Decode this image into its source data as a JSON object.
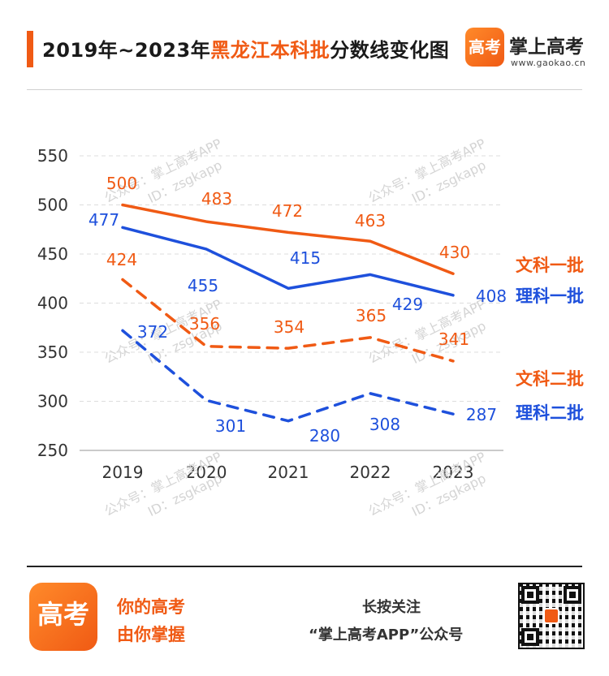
{
  "header": {
    "title_prefix": "2019年~2023年",
    "title_highlight": "黑龙江本科批",
    "title_suffix": "分数线变化图",
    "accent_color": "#f05a14"
  },
  "brand": {
    "logo_text": "高考",
    "name": "掌上高考",
    "url": "www.gaokao.cn"
  },
  "watermark": {
    "line1": "公众号：掌上高考APP",
    "line2": "ID：zsgkapp"
  },
  "chart_data": {
    "type": "line",
    "categories": [
      "2019",
      "2020",
      "2021",
      "2022",
      "2023"
    ],
    "ylim": [
      250,
      550
    ],
    "yticks": [
      550,
      500,
      450,
      400,
      350,
      300,
      250
    ],
    "grid": true,
    "legend_position": "right",
    "series": [
      {
        "name": "文科一批",
        "values": [
          500,
          483,
          472,
          463,
          430
        ],
        "color": "#f05a14",
        "style": "solid"
      },
      {
        "name": "理科一批",
        "values": [
          477,
          455,
          415,
          429,
          408
        ],
        "color": "#1e50dc",
        "style": "solid"
      },
      {
        "name": "文科二批",
        "values": [
          424,
          356,
          354,
          365,
          341
        ],
        "color": "#f05a14",
        "style": "dashed"
      },
      {
        "name": "理科二批",
        "values": [
          372,
          301,
          280,
          308,
          287
        ],
        "color": "#1e50dc",
        "style": "dashed"
      }
    ]
  },
  "footer": {
    "logo_text": "高考",
    "slogan_line1": "你的高考",
    "slogan_line2": "由你掌握",
    "follow_line1": "长按关注",
    "follow_line2": "“掌上高考APP”公众号"
  }
}
